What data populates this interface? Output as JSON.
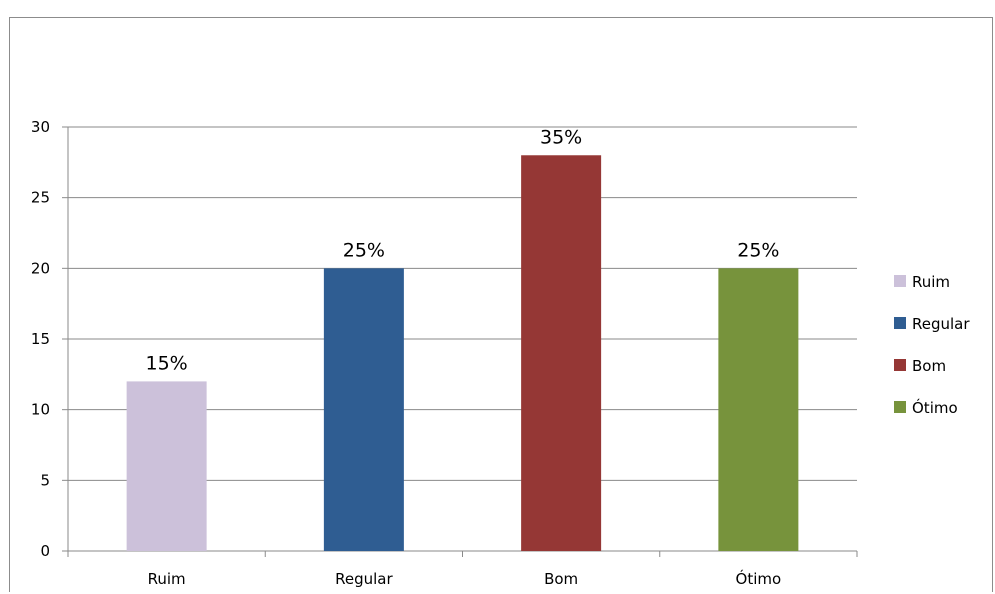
{
  "chart_data": {
    "type": "bar",
    "categories": [
      "Ruim",
      "Regular",
      "Bom",
      "Ótimo"
    ],
    "values": [
      12,
      20,
      28,
      20
    ],
    "data_labels": [
      "15%",
      "25%",
      "35%",
      "25%"
    ],
    "colors": [
      "#ccc1da",
      "#2f5d92",
      "#953735",
      "#77933c"
    ],
    "ylim": [
      0,
      30
    ],
    "yticks": [
      0,
      5,
      10,
      15,
      20,
      25,
      30
    ],
    "grid": true,
    "legend": {
      "position": "right",
      "entries": [
        "Ruim",
        "Regular",
        "Bom",
        "Ótimo"
      ]
    },
    "title": "",
    "xlabel": "",
    "ylabel": ""
  }
}
